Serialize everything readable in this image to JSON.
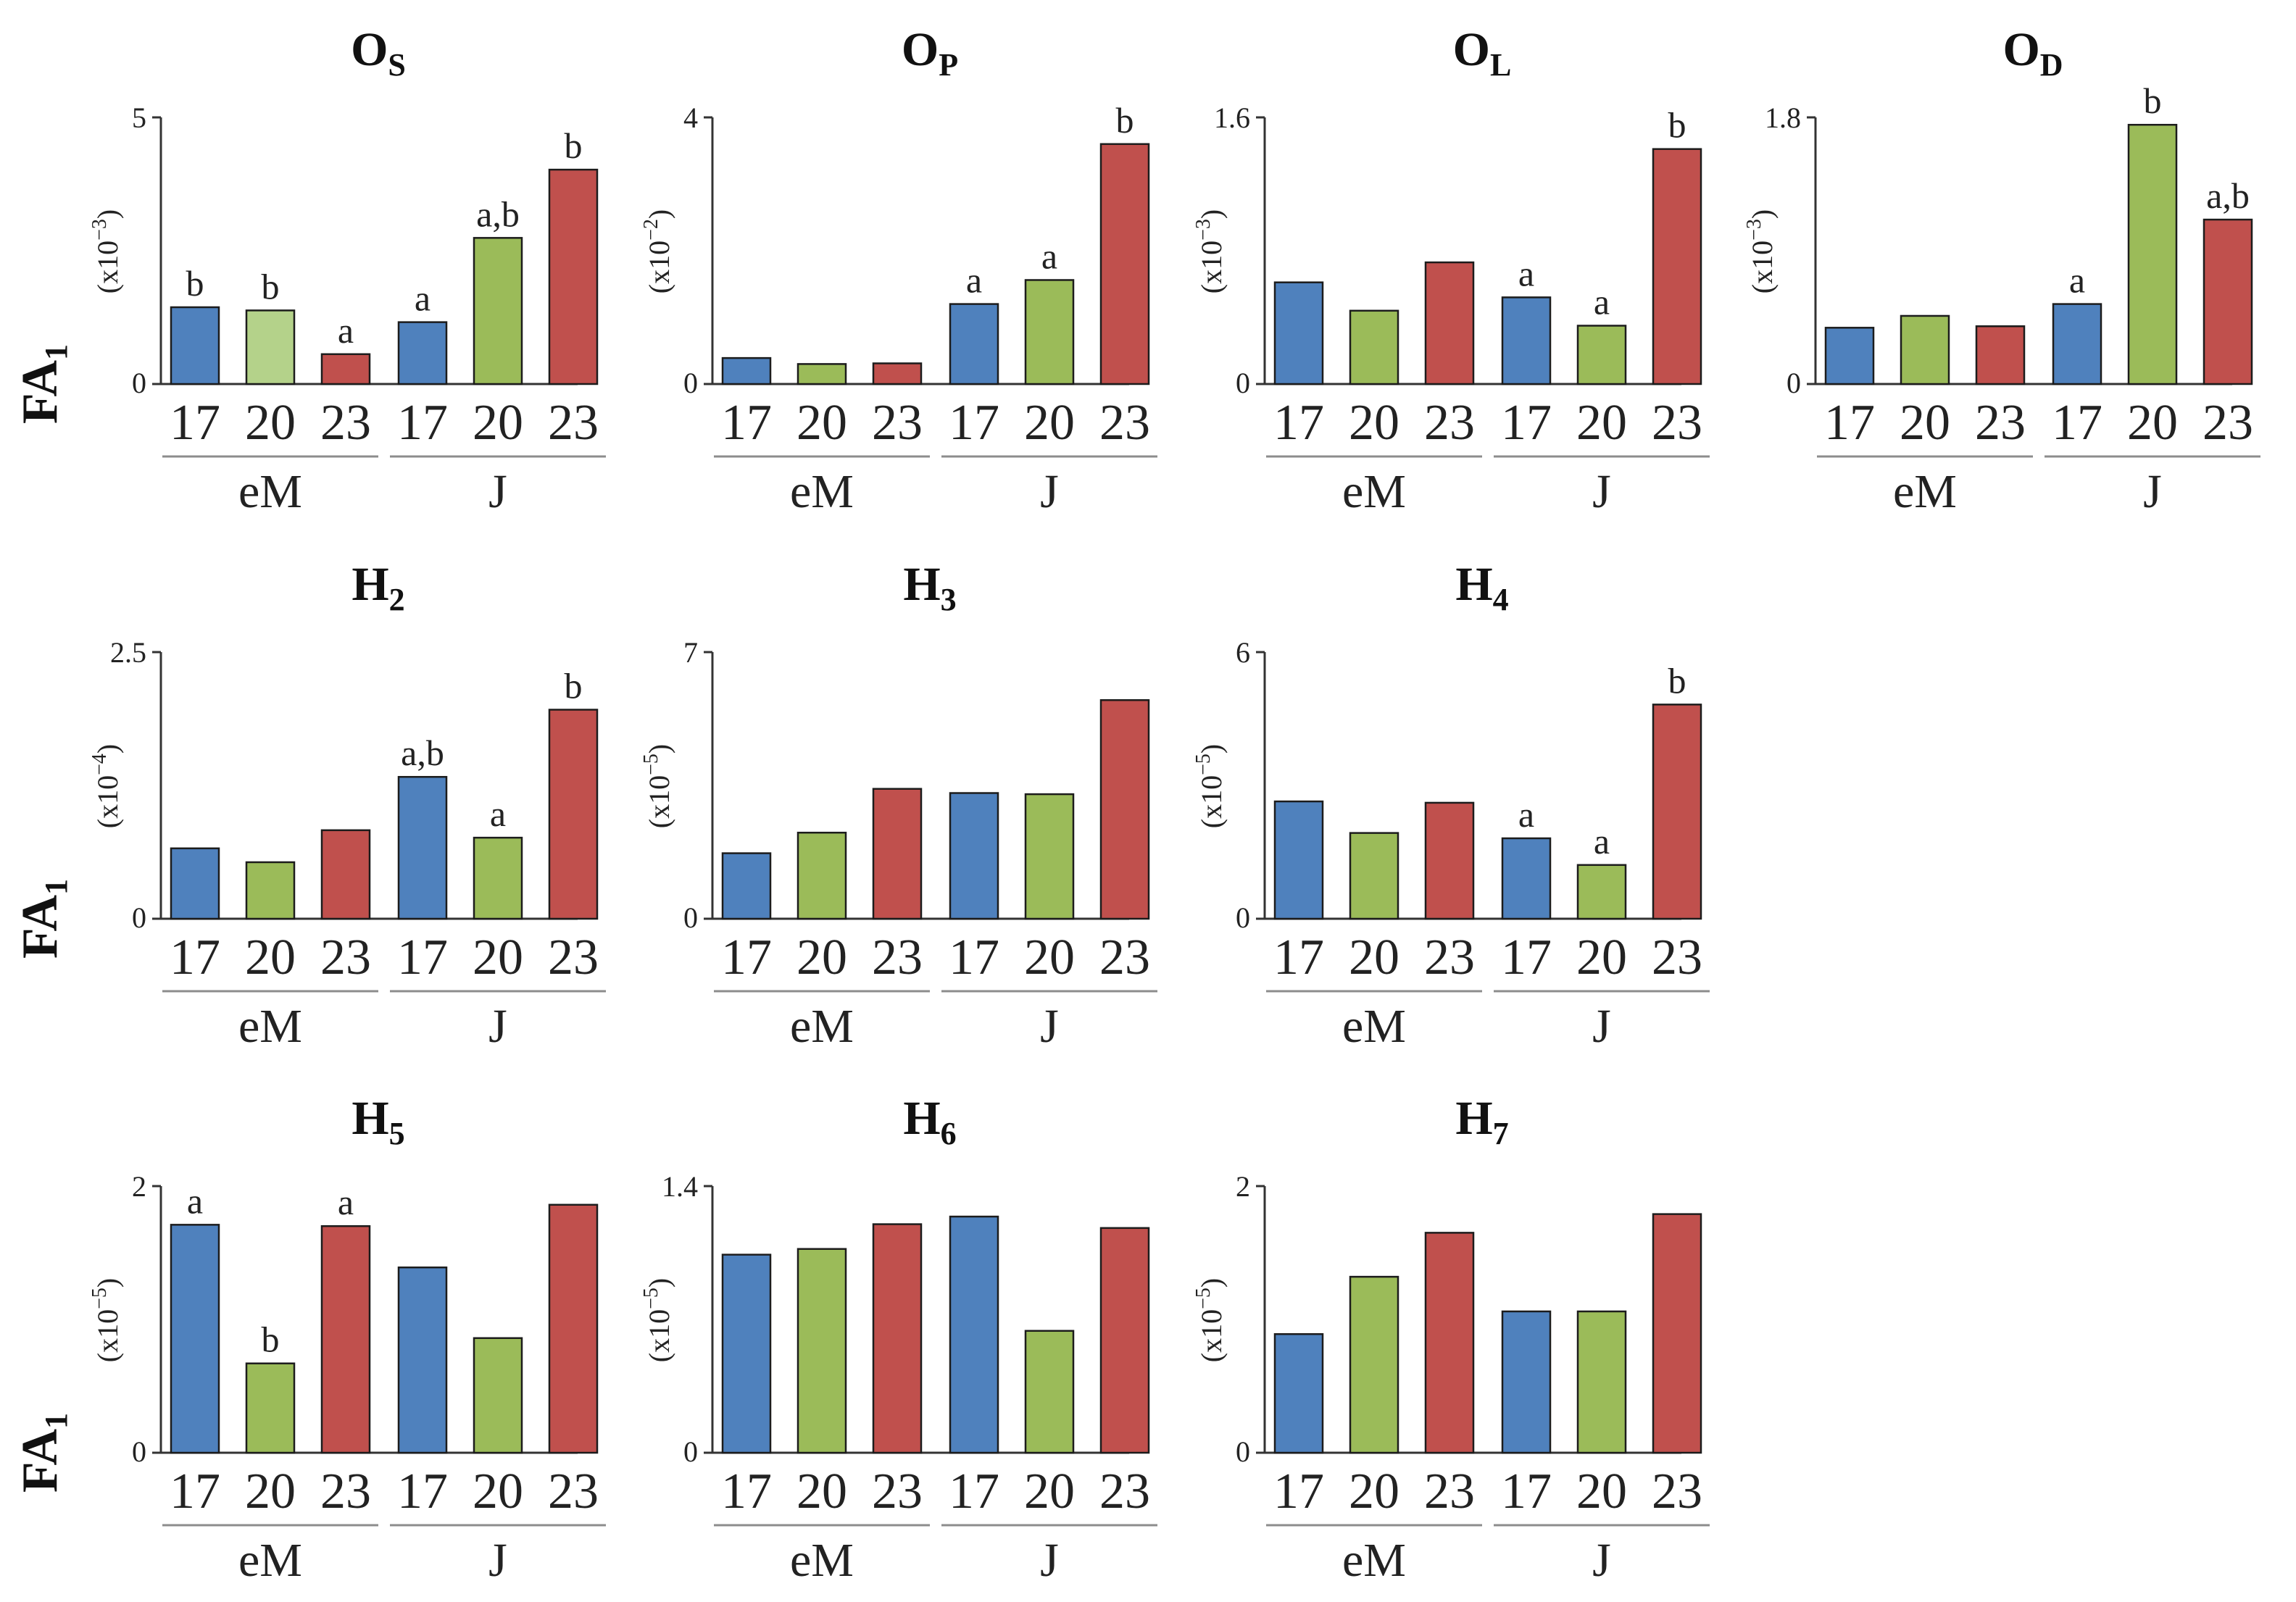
{
  "colors": {
    "blue": "#4f81bd",
    "green": "#9bbb59",
    "light_green": "#b4d28a",
    "red": "#c0504d"
  },
  "y_axis_label": {
    "main": "FA",
    "sub": "1"
  },
  "chart_data": [
    {
      "type": "bar",
      "title": "O",
      "title_sub": "S",
      "categories": [
        "17",
        "20",
        "23",
        "17",
        "20",
        "23"
      ],
      "groups": [
        "eM",
        "J"
      ],
      "values": [
        1.44,
        1.38,
        0.56,
        1.16,
        2.74,
        4.02
      ],
      "ylim": [
        0,
        5
      ],
      "yticks": [
        "0",
        "5"
      ],
      "scale": {
        "base": "x10",
        "exp": "−3"
      },
      "labels": [
        "b",
        "b",
        "a",
        "a",
        "a,b",
        "b"
      ],
      "bar_colors": [
        "blue",
        "light_green",
        "red",
        "blue",
        "green",
        "red"
      ]
    },
    {
      "type": "bar",
      "title": "O",
      "title_sub": "P",
      "categories": [
        "17",
        "20",
        "23",
        "17",
        "20",
        "23"
      ],
      "groups": [
        "eM",
        "J"
      ],
      "values": [
        0.39,
        0.3,
        0.31,
        1.2,
        1.56,
        3.6
      ],
      "ylim": [
        0,
        4
      ],
      "yticks": [
        "0",
        "4"
      ],
      "scale": {
        "base": "x10",
        "exp": "−2"
      },
      "labels": [
        "",
        "",
        "",
        "a",
        "a",
        "b"
      ],
      "bar_colors": [
        "blue",
        "green",
        "red",
        "blue",
        "green",
        "red"
      ]
    },
    {
      "type": "bar",
      "title": "O",
      "title_sub": "L",
      "categories": [
        "17",
        "20",
        "23",
        "17",
        "20",
        "23"
      ],
      "groups": [
        "eM",
        "J"
      ],
      "values": [
        0.61,
        0.44,
        0.73,
        0.52,
        0.35,
        1.41
      ],
      "ylim": [
        0,
        1.6
      ],
      "yticks": [
        "0",
        "1.6"
      ],
      "scale": {
        "base": "x10",
        "exp": "−3"
      },
      "labels": [
        "",
        "",
        "",
        "a",
        "a",
        "b"
      ],
      "bar_colors": [
        "blue",
        "green",
        "red",
        "blue",
        "green",
        "red"
      ]
    },
    {
      "type": "bar",
      "title": "O",
      "title_sub": "D",
      "categories": [
        "17",
        "20",
        "23",
        "17",
        "20",
        "23"
      ],
      "groups": [
        "eM",
        "J"
      ],
      "values": [
        0.38,
        0.46,
        0.39,
        0.54,
        1.75,
        1.11
      ],
      "ylim": [
        0,
        1.8
      ],
      "yticks": [
        "0",
        "1.8"
      ],
      "scale": {
        "base": "x10",
        "exp": "−3"
      },
      "labels": [
        "",
        "",
        "",
        "a",
        "b",
        "a,b"
      ],
      "bar_colors": [
        "blue",
        "green",
        "red",
        "blue",
        "green",
        "red"
      ]
    },
    {
      "type": "bar",
      "title": "H",
      "title_sub": "2",
      "categories": [
        "17",
        "20",
        "23",
        "17",
        "20",
        "23"
      ],
      "groups": [
        "eM",
        "J"
      ],
      "values": [
        0.66,
        0.53,
        0.83,
        1.33,
        0.76,
        1.96
      ],
      "ylim": [
        0,
        2.5
      ],
      "yticks": [
        "0",
        "2.5"
      ],
      "scale": {
        "base": "x10",
        "exp": "−4"
      },
      "labels": [
        "",
        "",
        "",
        "a,b",
        "a",
        "b"
      ],
      "bar_colors": [
        "blue",
        "green",
        "red",
        "blue",
        "green",
        "red"
      ]
    },
    {
      "type": "bar",
      "title": "H",
      "title_sub": "3",
      "categories": [
        "17",
        "20",
        "23",
        "17",
        "20",
        "23"
      ],
      "groups": [
        "eM",
        "J"
      ],
      "values": [
        1.72,
        2.26,
        3.41,
        3.3,
        3.27,
        5.74
      ],
      "ylim": [
        0,
        7
      ],
      "yticks": [
        "0",
        "7"
      ],
      "scale": {
        "base": "x10",
        "exp": "−5"
      },
      "labels": [
        "",
        "",
        "",
        "",
        "",
        ""
      ],
      "bar_colors": [
        "blue",
        "green",
        "red",
        "blue",
        "green",
        "red"
      ]
    },
    {
      "type": "bar",
      "title": "H",
      "title_sub": "4",
      "categories": [
        "17",
        "20",
        "23",
        "17",
        "20",
        "23"
      ],
      "groups": [
        "eM",
        "J"
      ],
      "values": [
        2.64,
        1.93,
        2.61,
        1.81,
        1.21,
        4.82
      ],
      "ylim": [
        0,
        6
      ],
      "yticks": [
        "0",
        "6"
      ],
      "scale": {
        "base": "x10",
        "exp": "−5"
      },
      "labels": [
        "",
        "",
        "",
        "a",
        "a",
        "b"
      ],
      "bar_colors": [
        "blue",
        "green",
        "red",
        "blue",
        "green",
        "red"
      ]
    },
    {
      "type": "bar",
      "title": "H",
      "title_sub": "5",
      "categories": [
        "17",
        "20",
        "23",
        "17",
        "20",
        "23"
      ],
      "groups": [
        "eM",
        "J"
      ],
      "values": [
        1.71,
        0.67,
        1.7,
        1.39,
        0.86,
        1.86
      ],
      "ylim": [
        0,
        2
      ],
      "yticks": [
        "0",
        "2"
      ],
      "scale": {
        "base": "x10",
        "exp": "−5"
      },
      "labels": [
        "a",
        "b",
        "a",
        "",
        "",
        ""
      ],
      "bar_colors": [
        "blue",
        "green",
        "red",
        "blue",
        "green",
        "red"
      ]
    },
    {
      "type": "bar",
      "title": "H",
      "title_sub": "6",
      "categories": [
        "17",
        "20",
        "23",
        "17",
        "20",
        "23"
      ],
      "groups": [
        "eM",
        "J"
      ],
      "values": [
        1.04,
        1.07,
        1.2,
        1.24,
        0.64,
        1.18
      ],
      "ylim": [
        0,
        1.4
      ],
      "yticks": [
        "0",
        "1.4"
      ],
      "scale": {
        "base": "x10",
        "exp": "−5"
      },
      "labels": [
        "",
        "",
        "",
        "",
        "",
        ""
      ],
      "bar_colors": [
        "blue",
        "green",
        "red",
        "blue",
        "green",
        "red"
      ]
    },
    {
      "type": "bar",
      "title": "H",
      "title_sub": "7",
      "categories": [
        "17",
        "20",
        "23",
        "17",
        "20",
        "23"
      ],
      "groups": [
        "eM",
        "J"
      ],
      "values": [
        0.89,
        1.32,
        1.65,
        1.06,
        1.06,
        1.79
      ],
      "ylim": [
        0,
        2
      ],
      "yticks": [
        "0",
        "2"
      ],
      "scale": {
        "base": "x10",
        "exp": "−5"
      },
      "labels": [
        "",
        "",
        "",
        "",
        "",
        ""
      ],
      "bar_colors": [
        "blue",
        "green",
        "red",
        "blue",
        "green",
        "red"
      ]
    }
  ]
}
